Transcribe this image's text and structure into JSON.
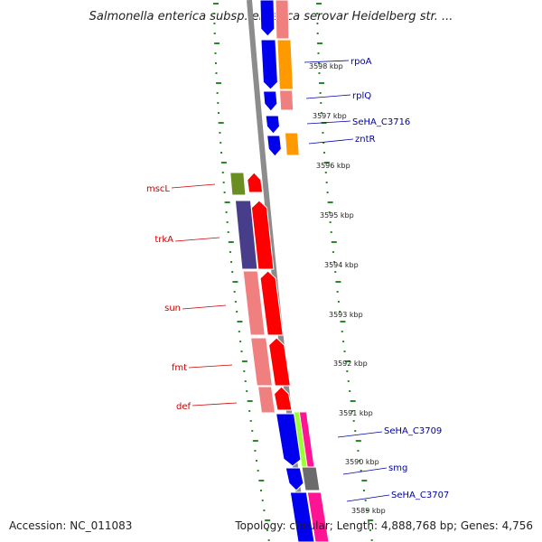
{
  "title": "Salmonella enterica subsp. enterica serovar Heidelberg str. ...",
  "footer": {
    "accession": "Accession: NC_011083",
    "summary": "Topology: circular; Length: 4,888,768 bp; Genes: 4,756"
  },
  "colors": {
    "backbone": "#8c8c8c",
    "tick": "#2a8a2a",
    "forward_label": "#0000aa",
    "reverse_label": "#cc0000",
    "blue": "#0000ee",
    "orange": "#ff9900",
    "pink": "#f08080",
    "red": "#ff0000",
    "olive": "#6b8e23",
    "slate": "#483d8b",
    "lime": "#99ff33",
    "magenta": "#ff1493",
    "gray": "#6b6b6b"
  },
  "kbp_labels": [
    "3598 kbp",
    "3597 kbp",
    "3596 kbp",
    "3595 kbp",
    "3594 kbp",
    "3593 kbp",
    "3592 kbp",
    "3591 kbp",
    "3590 kbp",
    "3589 kbp"
  ],
  "forward_genes": [
    "rpoA",
    "rplQ",
    "SeHA_C3716",
    "zntR",
    "SeHA_C3709",
    "smg",
    "SeHA_C3707"
  ],
  "reverse_genes": [
    "mscL",
    "trkA",
    "sun",
    "fmt",
    "def"
  ]
}
